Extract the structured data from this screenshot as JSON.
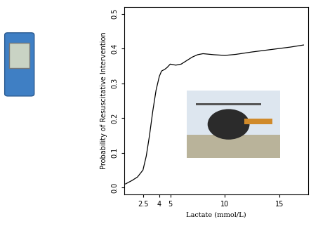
{
  "chart_data": {
    "type": "line",
    "x_label": "Lactate (mmol/L)",
    "y_label": "Probability of Resuscitative Intervention",
    "x": [
      0.9,
      1.5,
      2.0,
      2.5,
      2.8,
      3.1,
      3.4,
      3.7,
      4.0,
      4.2,
      4.5,
      4.7,
      5.0,
      5.5,
      6.0,
      6.5,
      7.0,
      7.5,
      8.0,
      9.0,
      10.0,
      11.0,
      12.5,
      14.0,
      15.0,
      16.0,
      17.2
    ],
    "values": [
      0.01,
      0.02,
      0.03,
      0.05,
      0.09,
      0.15,
      0.22,
      0.28,
      0.32,
      0.335,
      0.34,
      0.345,
      0.355,
      0.352,
      0.355,
      0.365,
      0.375,
      0.382,
      0.385,
      0.382,
      0.38,
      0.383,
      0.39,
      0.396,
      0.4,
      0.404,
      0.41
    ],
    "color": "#000000",
    "xlim": [
      0.8,
      17.6
    ],
    "xticks": [
      2.5,
      4,
      5,
      10,
      15
    ],
    "ylim": [
      -0.02,
      0.52
    ],
    "yticks": [
      0.0,
      0.1,
      0.2,
      0.3,
      0.4,
      0.5
    ],
    "grid": false
  }
}
